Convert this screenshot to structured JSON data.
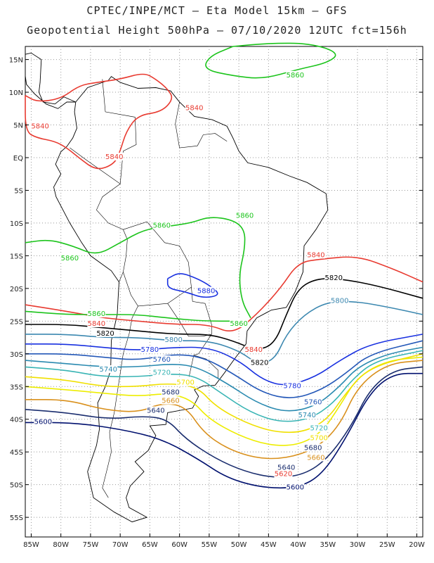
{
  "header": {
    "line1": "CPTEC/INPE/MCT –  Eta Model 15km – GFS",
    "line2": "Geopotential Height 500hPa – 07/10/2020 12UTC fct=156h"
  },
  "axes": {
    "lon_labels": [
      "85W",
      "80W",
      "75W",
      "70W",
      "65W",
      "60W",
      "55W",
      "50W",
      "45W",
      "40W",
      "35W",
      "30W",
      "25W",
      "20W"
    ],
    "lat_labels": [
      "15N",
      "10N",
      "5N",
      "EQ",
      "5S",
      "10S",
      "15S",
      "20S",
      "25S",
      "30S",
      "35S",
      "40S",
      "45S",
      "50S",
      "55S"
    ],
    "lon_range": [
      -86,
      -19
    ],
    "lat_range": [
      17,
      -58
    ],
    "grid": "dotted"
  },
  "colors": {
    "c5600": "#00106e",
    "c5640": "#1a2d6e",
    "c5660": "#d9901c",
    "c5680": "#eded00",
    "c5700": "#f0e000",
    "c5720": "#38b4b4",
    "c5740": "#2a8ab0",
    "c5760": "#2458b8",
    "c5780": "#1830e0",
    "c5800": "#3c88b0",
    "c5820": "#000000",
    "c5840": "#e83a30",
    "c5860": "#1cc41c"
  },
  "contours": [
    {
      "value": "5600",
      "color": "#00106e",
      "labels": [
        "5600",
        "5600"
      ],
      "points": [
        [
          -86,
          -40.5
        ],
        [
          -78,
          -40.5
        ],
        [
          -70,
          -41.5
        ],
        [
          -63,
          -43
        ],
        [
          -57,
          -46
        ],
        [
          -52,
          -49
        ],
        [
          -46,
          -50.5
        ],
        [
          -40,
          -50.5
        ],
        [
          -36,
          -48.5
        ],
        [
          -32,
          -43
        ],
        [
          -28,
          -36
        ],
        [
          -24,
          -33
        ],
        [
          -19,
          -33
        ]
      ]
    },
    {
      "value": "5640",
      "color": "#1a2d6e",
      "labels": [
        "5640",
        "5640"
      ],
      "points": [
        [
          -86,
          -38.5
        ],
        [
          -79,
          -39
        ],
        [
          -72,
          -40
        ],
        [
          -66,
          -39.5
        ],
        [
          -62,
          -40
        ],
        [
          -59,
          -43
        ],
        [
          -54,
          -46
        ],
        [
          -49,
          -48
        ],
        [
          -44,
          -49
        ],
        [
          -39,
          -48.5
        ],
        [
          -35,
          -46
        ],
        [
          -31,
          -41
        ],
        [
          -28,
          -35.5
        ],
        [
          -24,
          -32.5
        ],
        [
          -19,
          -32
        ]
      ]
    },
    {
      "value": "5660",
      "color": "#d9901c",
      "labels": [
        "5660",
        "5660"
      ],
      "points": [
        [
          -86,
          -37
        ],
        [
          -79,
          -37
        ],
        [
          -73,
          -38.5
        ],
        [
          -67,
          -39
        ],
        [
          -63,
          -37.5
        ],
        [
          -59,
          -38
        ],
        [
          -56,
          -42
        ],
        [
          -52,
          -44.5
        ],
        [
          -47,
          -46
        ],
        [
          -42,
          -46
        ],
        [
          -37,
          -44.5
        ],
        [
          -33,
          -41
        ],
        [
          -30,
          -35
        ],
        [
          -25,
          -31.5
        ],
        [
          -19,
          -31
        ]
      ]
    },
    {
      "value": "5680",
      "color": "#eded00",
      "labels": [
        "5680",
        "5680"
      ],
      "points": [
        [
          -86,
          -35
        ],
        [
          -79,
          -35.5
        ],
        [
          -73,
          -36
        ],
        [
          -67,
          -36.5
        ],
        [
          -62,
          -36
        ],
        [
          -58,
          -37
        ],
        [
          -55,
          -40
        ],
        [
          -50,
          -42.5
        ],
        [
          -45,
          -44
        ],
        [
          -40,
          -44
        ],
        [
          -36,
          -42
        ],
        [
          -33,
          -38
        ],
        [
          -30,
          -33.5
        ],
        [
          -25,
          -31
        ],
        [
          -19,
          -30.5
        ]
      ]
    },
    {
      "value": "5700",
      "color": "#f0e000",
      "labels": [
        "5700",
        "5700"
      ],
      "points": [
        [
          -86,
          -33.5
        ],
        [
          -79,
          -34
        ],
        [
          -73,
          -35
        ],
        [
          -67,
          -35
        ],
        [
          -62,
          -34.5
        ],
        [
          -57,
          -35
        ],
        [
          -54,
          -38
        ],
        [
          -49,
          -40.5
        ],
        [
          -44,
          -42
        ],
        [
          -39,
          -42
        ],
        [
          -35,
          -40
        ],
        [
          -32,
          -36
        ],
        [
          -28,
          -32
        ],
        [
          -19,
          -30
        ]
      ]
    },
    {
      "value": "5720",
      "color": "#38b4b4",
      "labels": [
        "5720",
        "5720"
      ],
      "points": [
        [
          -86,
          -32
        ],
        [
          -79,
          -32.5
        ],
        [
          -73,
          -33.5
        ],
        [
          -67,
          -33.5
        ],
        [
          -61,
          -33
        ],
        [
          -57,
          -33.5
        ],
        [
          -53,
          -36
        ],
        [
          -48,
          -39
        ],
        [
          -43,
          -40.5
        ],
        [
          -38,
          -40
        ],
        [
          -34,
          -37.5
        ],
        [
          -31,
          -34
        ],
        [
          -27,
          -31
        ],
        [
          -19,
          -29.5
        ]
      ]
    },
    {
      "value": "5740",
      "color": "#2a8ab0",
      "labels": [
        "5740",
        "5740"
      ],
      "points": [
        [
          -86,
          -31
        ],
        [
          -79,
          -31.5
        ],
        [
          -73,
          -32
        ],
        [
          -67,
          -32
        ],
        [
          -61,
          -31.5
        ],
        [
          -57,
          -32
        ],
        [
          -52,
          -34.5
        ],
        [
          -47,
          -37.5
        ],
        [
          -42,
          -39
        ],
        [
          -37,
          -38
        ],
        [
          -33,
          -35
        ],
        [
          -30,
          -32
        ],
        [
          -25,
          -30
        ],
        [
          -19,
          -29
        ]
      ]
    },
    {
      "value": "5760",
      "color": "#2458b8",
      "labels": [
        "5760",
        "5760"
      ],
      "points": [
        [
          -86,
          -30
        ],
        [
          -79,
          -30
        ],
        [
          -73,
          -30.5
        ],
        [
          -67,
          -31
        ],
        [
          -61,
          -30
        ],
        [
          -56,
          -30.5
        ],
        [
          -51,
          -33
        ],
        [
          -46,
          -36
        ],
        [
          -41,
          -37
        ],
        [
          -36,
          -35.5
        ],
        [
          -32,
          -33
        ],
        [
          -28,
          -30
        ],
        [
          -19,
          -28
        ]
      ]
    },
    {
      "value": "5780",
      "color": "#1830e0",
      "labels": [
        "5780",
        "5780"
      ],
      "points": [
        [
          -86,
          -28.5
        ],
        [
          -79,
          -28.5
        ],
        [
          -73,
          -29
        ],
        [
          -67,
          -29.5
        ],
        [
          -61,
          -29
        ],
        [
          -55,
          -29
        ],
        [
          -50,
          -31
        ],
        [
          -46,
          -34
        ],
        [
          -42,
          -35
        ],
        [
          -37,
          -33.5
        ],
        [
          -33,
          -31
        ],
        [
          -28,
          -28.5
        ],
        [
          -19,
          -27
        ]
      ]
    },
    {
      "value": "5800",
      "color": "#3c88b0",
      "labels": [
        "5800",
        "5800"
      ],
      "points": [
        [
          -86,
          -27
        ],
        [
          -79,
          -27
        ],
        [
          -73,
          -27.5
        ],
        [
          -67,
          -27.5
        ],
        [
          -61,
          -28
        ],
        [
          -55,
          -28
        ],
        [
          -50,
          -29.5
        ],
        [
          -47,
          -31.5
        ],
        [
          -44,
          -31
        ],
        [
          -42,
          -27
        ],
        [
          -39,
          -24
        ],
        [
          -35,
          -22
        ],
        [
          -30,
          -22
        ],
        [
          -24,
          -23
        ],
        [
          -19,
          -24
        ]
      ]
    },
    {
      "value": "5820",
      "color": "#000000",
      "labels": [
        "5820",
        "5820",
        "5820"
      ],
      "points": [
        [
          -86,
          -25.5
        ],
        [
          -79,
          -25.5
        ],
        [
          -73,
          -26
        ],
        [
          -67,
          -26.5
        ],
        [
          -61,
          -27
        ],
        [
          -55,
          -27
        ],
        [
          -51,
          -28
        ],
        [
          -47,
          -29.5
        ],
        [
          -44,
          -28.5
        ],
        [
          -42,
          -24
        ],
        [
          -40,
          -20
        ],
        [
          -37,
          -18.5
        ],
        [
          -33,
          -18.5
        ],
        [
          -27,
          -19.5
        ],
        [
          -19,
          -21.5
        ]
      ]
    },
    {
      "value": "5840",
      "color": "#e83a30",
      "labels": [
        "5840",
        "5840",
        "5840",
        "5840"
      ],
      "points": [
        [
          -86,
          -22.5
        ],
        [
          -79,
          -23.5
        ],
        [
          -73,
          -24.5
        ],
        [
          -67,
          -25
        ],
        [
          -61,
          -25.5
        ],
        [
          -55,
          -25.5
        ],
        [
          -51,
          -27
        ],
        [
          -47,
          -24
        ],
        [
          -43,
          -20
        ],
        [
          -40,
          -16
        ],
        [
          -36,
          -15.5
        ],
        [
          -30,
          -15
        ],
        [
          -24,
          -17
        ],
        [
          -19,
          -19
        ]
      ]
    },
    {
      "value": "5860",
      "color": "#1cc41c",
      "labels": [
        "5860",
        "5860",
        "5860"
      ],
      "points": [
        [
          -86,
          -13
        ],
        [
          -82,
          -12.5
        ],
        [
          -78,
          -13.5
        ],
        [
          -74,
          -15
        ],
        [
          -70,
          -13
        ],
        [
          -66,
          -11
        ],
        [
          -62,
          -10.5
        ],
        [
          -58,
          -10
        ],
        [
          -55,
          -9
        ],
        [
          -51,
          -9.5
        ],
        [
          -49,
          -11
        ],
        [
          -49,
          -14
        ],
        [
          -50,
          -18
        ],
        [
          -49.5,
          -22
        ],
        [
          -48,
          -24.5
        ]
      ]
    },
    {
      "value": "5860",
      "color": "#1cc41c",
      "labels": [],
      "points": [
        [
          -86,
          -23.5
        ],
        [
          -79,
          -24
        ],
        [
          -73,
          -24
        ],
        [
          -67,
          -24
        ],
        [
          -62,
          -24.5
        ],
        [
          -56,
          -25
        ],
        [
          -50,
          -25
        ]
      ]
    }
  ],
  "closed": [
    {
      "value": "5840",
      "color": "#e83a30",
      "points": [
        [
          -86,
          9.5
        ],
        [
          -84,
          8.5
        ],
        [
          -80,
          9
        ],
        [
          -77,
          11
        ],
        [
          -74,
          11.5
        ],
        [
          -70,
          12
        ],
        [
          -66,
          13
        ],
        [
          -64,
          12
        ],
        [
          -62,
          10.5
        ],
        [
          -61,
          9
        ],
        [
          -63,
          7
        ],
        [
          -67,
          6.5
        ],
        [
          -69,
          4
        ],
        [
          -70,
          1
        ],
        [
          -71,
          -1
        ],
        [
          -74,
          -2
        ],
        [
          -77,
          0
        ],
        [
          -79,
          1.5
        ],
        [
          -81,
          2.5
        ],
        [
          -84,
          3
        ],
        [
          -86,
          4
        ]
      ]
    },
    {
      "value": "5860",
      "color": "#1cc41c",
      "points": [
        [
          -51,
          17
        ],
        [
          -45,
          17.5
        ],
        [
          -38,
          17.5
        ],
        [
          -33,
          16
        ],
        [
          -35,
          14.5
        ],
        [
          -40,
          13.5
        ],
        [
          -46,
          12
        ],
        [
          -51,
          12.5
        ],
        [
          -56,
          13.5
        ],
        [
          -55,
          15.5
        ]
      ]
    },
    {
      "value": "5880",
      "color": "#1830e0",
      "points": [
        [
          -62,
          -18.5
        ],
        [
          -60,
          -17.5
        ],
        [
          -57,
          -18.5
        ],
        [
          -55,
          -19.5
        ],
        [
          -53,
          -21
        ],
        [
          -56,
          -21.5
        ],
        [
          -59,
          -20.5
        ],
        [
          -62,
          -20
        ]
      ]
    }
  ],
  "label_positions_lonlat": [
    [
      -57.5,
      7.5,
      "5840",
      "#e83a30"
    ],
    [
      -83.5,
      4.7,
      "5840",
      "#e83a30"
    ],
    [
      -71,
      0,
      "5840",
      "#e83a30"
    ],
    [
      -40.5,
      12.5,
      "5860",
      "#1cc41c"
    ],
    [
      -49,
      -9,
      "5860",
      "#1cc41c"
    ],
    [
      -63,
      -10.5,
      "5860",
      "#1cc41c"
    ],
    [
      -78.5,
      -15.5,
      "5860",
      "#1cc41c"
    ],
    [
      -74,
      -24,
      "5860",
      "#1cc41c"
    ],
    [
      -50,
      -25.5,
      "5860",
      "#1cc41c"
    ],
    [
      -55.5,
      -20.5,
      "5880",
      "#1830e0"
    ],
    [
      -74,
      -25.5,
      "5840",
      "#e83a30"
    ],
    [
      -47.5,
      -29.5,
      "5840",
      "#e83a30"
    ],
    [
      -37,
      -15,
      "5840",
      "#e83a30"
    ],
    [
      -72.5,
      -27,
      "5820",
      "#000000"
    ],
    [
      -46.5,
      -31.5,
      "5820",
      "#000000"
    ],
    [
      -34,
      -18.5,
      "5820",
      "#000000"
    ],
    [
      -33,
      -22,
      "5800",
      "#3c88b0"
    ],
    [
      -61,
      -28,
      "5800",
      "#3c88b0"
    ],
    [
      -65,
      -29.5,
      "5780",
      "#1830e0"
    ],
    [
      -41,
      -35,
      "5780",
      "#1830e0"
    ],
    [
      -63,
      -31,
      "5760",
      "#2458b8"
    ],
    [
      -37.5,
      -37.5,
      "5760",
      "#2458b8"
    ],
    [
      -72,
      -32.5,
      "5740",
      "#2a8ab0"
    ],
    [
      -38.5,
      -39.5,
      "5740",
      "#2a8ab0"
    ],
    [
      -63,
      -33,
      "5720",
      "#38b4b4"
    ],
    [
      -36.5,
      -41.5,
      "5720",
      "#38b4b4"
    ],
    [
      -59,
      -34.5,
      "5700",
      "#f0e000"
    ],
    [
      -36.5,
      -43,
      "5700",
      "#f0e000"
    ],
    [
      -61.5,
      -36,
      "5680",
      "#1a2d6e"
    ],
    [
      -37.5,
      -44.5,
      "5680",
      "#1a2d6e"
    ],
    [
      -61.5,
      -37.3,
      "5660",
      "#d9901c"
    ],
    [
      -37,
      -46,
      "5660",
      "#d9901c"
    ],
    [
      -64,
      -38.8,
      "5640",
      "#1a2d6e"
    ],
    [
      -42,
      -47.5,
      "5640",
      "#1a2d6e"
    ],
    [
      -83,
      -40.5,
      "5600",
      "#00106e"
    ],
    [
      -40.5,
      -50.5,
      "5600",
      "#00106e"
    ],
    [
      -42.5,
      -48.5,
      "5620",
      "#e83a30"
    ]
  ]
}
